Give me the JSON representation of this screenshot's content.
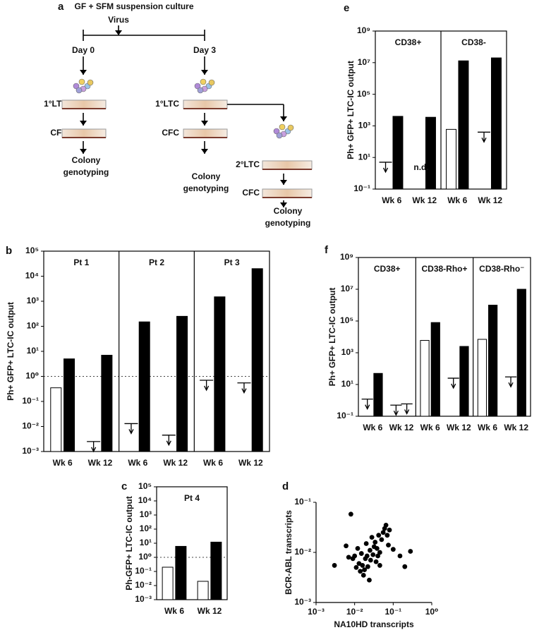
{
  "diagram": {
    "label": "a",
    "title": "GF + SFM suspension culture",
    "virus": "Virus",
    "days": [
      "Day 0",
      "Day 3"
    ],
    "steps": [
      "1°LTC",
      "1°LTC",
      "2°LTC"
    ],
    "cfc": [
      "CFC",
      "CFC",
      "CFC"
    ],
    "genotyping": [
      [
        "Colony",
        "genotyping"
      ],
      [
        "Colony",
        "genotyping"
      ],
      [
        "Colony",
        "genotyping"
      ]
    ]
  },
  "chart_data": [
    {
      "type": "bar",
      "label": "b",
      "ylabel": "Ph+ GFP+ LTC-IC output",
      "y_scale": "log",
      "ylim": [
        0.001,
        100000
      ],
      "yticks": [
        {
          "value": 0.001,
          "label": "10⁻³"
        },
        {
          "value": 0.01,
          "label": "10⁻²"
        },
        {
          "value": 0.1,
          "label": "10⁻¹"
        },
        {
          "value": 1,
          "label": "10⁰"
        },
        {
          "value": 10,
          "label": "10¹"
        },
        {
          "value": 100,
          "label": "10²"
        },
        {
          "value": 1000,
          "label": "10³"
        },
        {
          "value": 10000,
          "label": "10⁴"
        },
        {
          "value": 100000,
          "label": "10⁵"
        }
      ],
      "reference_line": 1,
      "categories": [
        "Wk 6",
        "Wk 12"
      ],
      "facets": [
        {
          "title": "Pt 1",
          "series": [
            {
              "color": "#ffffff",
              "values": [
                0.35,
                null
              ],
              "upper_limits": [
                null,
                0.0025
              ]
            },
            {
              "color": "#000000",
              "values": [
                5,
                7
              ],
              "upper_limits": [
                null,
                null
              ]
            }
          ]
        },
        {
          "title": "Pt 2",
          "series": [
            {
              "color": "#ffffff",
              "values": [
                null,
                null
              ],
              "upper_limits": [
                0.013,
                0.0045
              ]
            },
            {
              "color": "#000000",
              "values": [
                150,
                250
              ],
              "upper_limits": [
                null,
                null
              ]
            }
          ]
        },
        {
          "title": "Pt 3",
          "series": [
            {
              "color": "#ffffff",
              "values": [
                null,
                null
              ],
              "upper_limits": [
                0.7,
                0.55
              ]
            },
            {
              "color": "#000000",
              "values": [
                1500,
                20000
              ],
              "upper_limits": [
                null,
                null
              ]
            }
          ]
        }
      ]
    },
    {
      "type": "bar",
      "label": "c",
      "ylabel": "Ph-GFP+ LTC-IC output",
      "y_scale": "log",
      "ylim": [
        0.001,
        100000
      ],
      "yticks": [
        {
          "value": 0.001,
          "label": "10⁻³"
        },
        {
          "value": 0.01,
          "label": "10⁻²"
        },
        {
          "value": 0.1,
          "label": "10⁻¹"
        },
        {
          "value": 1,
          "label": "10⁰"
        },
        {
          "value": 10,
          "label": "10¹"
        },
        {
          "value": 100,
          "label": "10²"
        },
        {
          "value": 1000,
          "label": "10³"
        },
        {
          "value": 10000,
          "label": "10⁴"
        },
        {
          "value": 100000,
          "label": "10⁵"
        }
      ],
      "reference_line": 1,
      "categories": [
        "Wk 6",
        "Wk 12"
      ],
      "facets": [
        {
          "title": "Pt 4",
          "series": [
            {
              "color": "#ffffff",
              "values": [
                0.2,
                0.02
              ],
              "upper_limits": [
                null,
                null
              ]
            },
            {
              "color": "#000000",
              "values": [
                6,
                12
              ],
              "upper_limits": [
                null,
                null
              ]
            }
          ]
        }
      ]
    },
    {
      "type": "scatter",
      "label": "d",
      "xlabel": "NA10HD transcripts",
      "ylabel": "BCR-ABL transcripts",
      "x_scale": "log",
      "y_scale": "log",
      "color": "#000000",
      "xlim": [
        0.001,
        1
      ],
      "xticks": [
        {
          "value": 0.001,
          "label": "10⁻³"
        },
        {
          "value": 0.01,
          "label": "10⁻²"
        },
        {
          "value": 0.1,
          "label": "10⁻¹"
        },
        {
          "value": 1,
          "label": "10⁰"
        }
      ],
      "ylim": [
        0.001,
        0.1
      ],
      "yticks": [
        {
          "value": 0.001,
          "label": "10⁻³"
        },
        {
          "value": 0.01,
          "label": "10⁻²"
        },
        {
          "value": 0.1,
          "label": "10⁻¹"
        }
      ],
      "x": [
        0.003,
        0.006,
        0.007,
        0.008,
        0.009,
        0.01,
        0.011,
        0.012,
        0.013,
        0.014,
        0.015,
        0.016,
        0.017,
        0.018,
        0.019,
        0.02,
        0.021,
        0.022,
        0.024,
        0.025,
        0.026,
        0.028,
        0.03,
        0.032,
        0.034,
        0.036,
        0.038,
        0.04,
        0.042,
        0.045,
        0.05,
        0.055,
        0.06,
        0.065,
        0.07,
        0.075,
        0.08,
        0.1,
        0.15,
        0.2,
        0.28,
        0.045
      ],
      "y": [
        0.0055,
        0.0135,
        0.008,
        0.058,
        0.0075,
        0.0085,
        0.005,
        0.012,
        0.006,
        0.0042,
        0.0095,
        0.0055,
        0.0035,
        0.0045,
        0.0075,
        0.015,
        0.0085,
        0.0052,
        0.0028,
        0.011,
        0.007,
        0.02,
        0.009,
        0.013,
        0.016,
        0.0065,
        0.012,
        0.0085,
        0.022,
        0.01,
        0.018,
        0.025,
        0.03,
        0.035,
        0.022,
        0.014,
        0.028,
        0.0115,
        0.0085,
        0.0052,
        0.0105,
        0.0055
      ]
    },
    {
      "type": "bar",
      "label": "e",
      "ylabel": "Ph+ GFP+ LTC-IC output",
      "y_scale": "log",
      "ylim": [
        0.1,
        1000000000
      ],
      "yticks": [
        {
          "value": 0.1,
          "label": "10⁻¹"
        },
        {
          "value": 10,
          "label": "10¹"
        },
        {
          "value": 1000,
          "label": "10³"
        },
        {
          "value": 100000,
          "label": "10⁵"
        },
        {
          "value": 10000000,
          "label": "10⁷"
        },
        {
          "value": 1000000000,
          "label": "10⁹"
        }
      ],
      "categories": [
        "Wk 6",
        "Wk 12"
      ],
      "facets": [
        {
          "title": "CD38+",
          "annotations": [
            {
              "text": "n.d.",
              "category": 1
            }
          ],
          "series": [
            {
              "color": "#ffffff",
              "values": [
                null,
                null
              ],
              "upper_limits": [
                5,
                null
              ]
            },
            {
              "color": "#000000",
              "values": [
                4000,
                3500
              ],
              "upper_limits": [
                null,
                null
              ]
            }
          ]
        },
        {
          "title": "CD38-",
          "series": [
            {
              "color": "#ffffff",
              "values": [
                600,
                null
              ],
              "upper_limits": [
                null,
                400
              ]
            },
            {
              "color": "#000000",
              "values": [
                13000000,
                20000000
              ],
              "upper_limits": [
                null,
                null
              ]
            }
          ]
        }
      ]
    },
    {
      "type": "bar",
      "label": "f",
      "ylabel": "Ph+ GFP+ LTC-IC output",
      "y_scale": "log",
      "ylim": [
        0.1,
        1000000000
      ],
      "yticks": [
        {
          "value": 0.1,
          "label": "10⁻¹"
        },
        {
          "value": 10,
          "label": "10¹"
        },
        {
          "value": 1000,
          "label": "10³"
        },
        {
          "value": 100000,
          "label": "10⁵"
        },
        {
          "value": 10000000,
          "label": "10⁷"
        },
        {
          "value": 1000000000,
          "label": "10⁹"
        }
      ],
      "categories": [
        "Wk 6",
        "Wk 12"
      ],
      "facets": [
        {
          "title": "CD38+",
          "series": [
            {
              "color": "#ffffff",
              "values": [
                null,
                null
              ],
              "upper_limits": [
                1.2,
                0.5
              ]
            },
            {
              "color": "#000000",
              "values": [
                50,
                null
              ],
              "upper_limits": [
                null,
                0.6
              ]
            }
          ]
        },
        {
          "title": "CD38-Rho+",
          "series": [
            {
              "color": "#ffffff",
              "values": [
                6000,
                null
              ],
              "upper_limits": [
                null,
                25
              ]
            },
            {
              "color": "#000000",
              "values": [
                80000,
                2500
              ],
              "upper_limits": [
                null,
                null
              ]
            }
          ]
        },
        {
          "title": "CD38-Rho⁻",
          "series": [
            {
              "color": "#ffffff",
              "values": [
                7000,
                null
              ],
              "upper_limits": [
                null,
                30
              ]
            },
            {
              "color": "#000000",
              "values": [
                1000000,
                10000000
              ],
              "upper_limits": [
                null,
                null
              ]
            }
          ]
        }
      ]
    }
  ]
}
